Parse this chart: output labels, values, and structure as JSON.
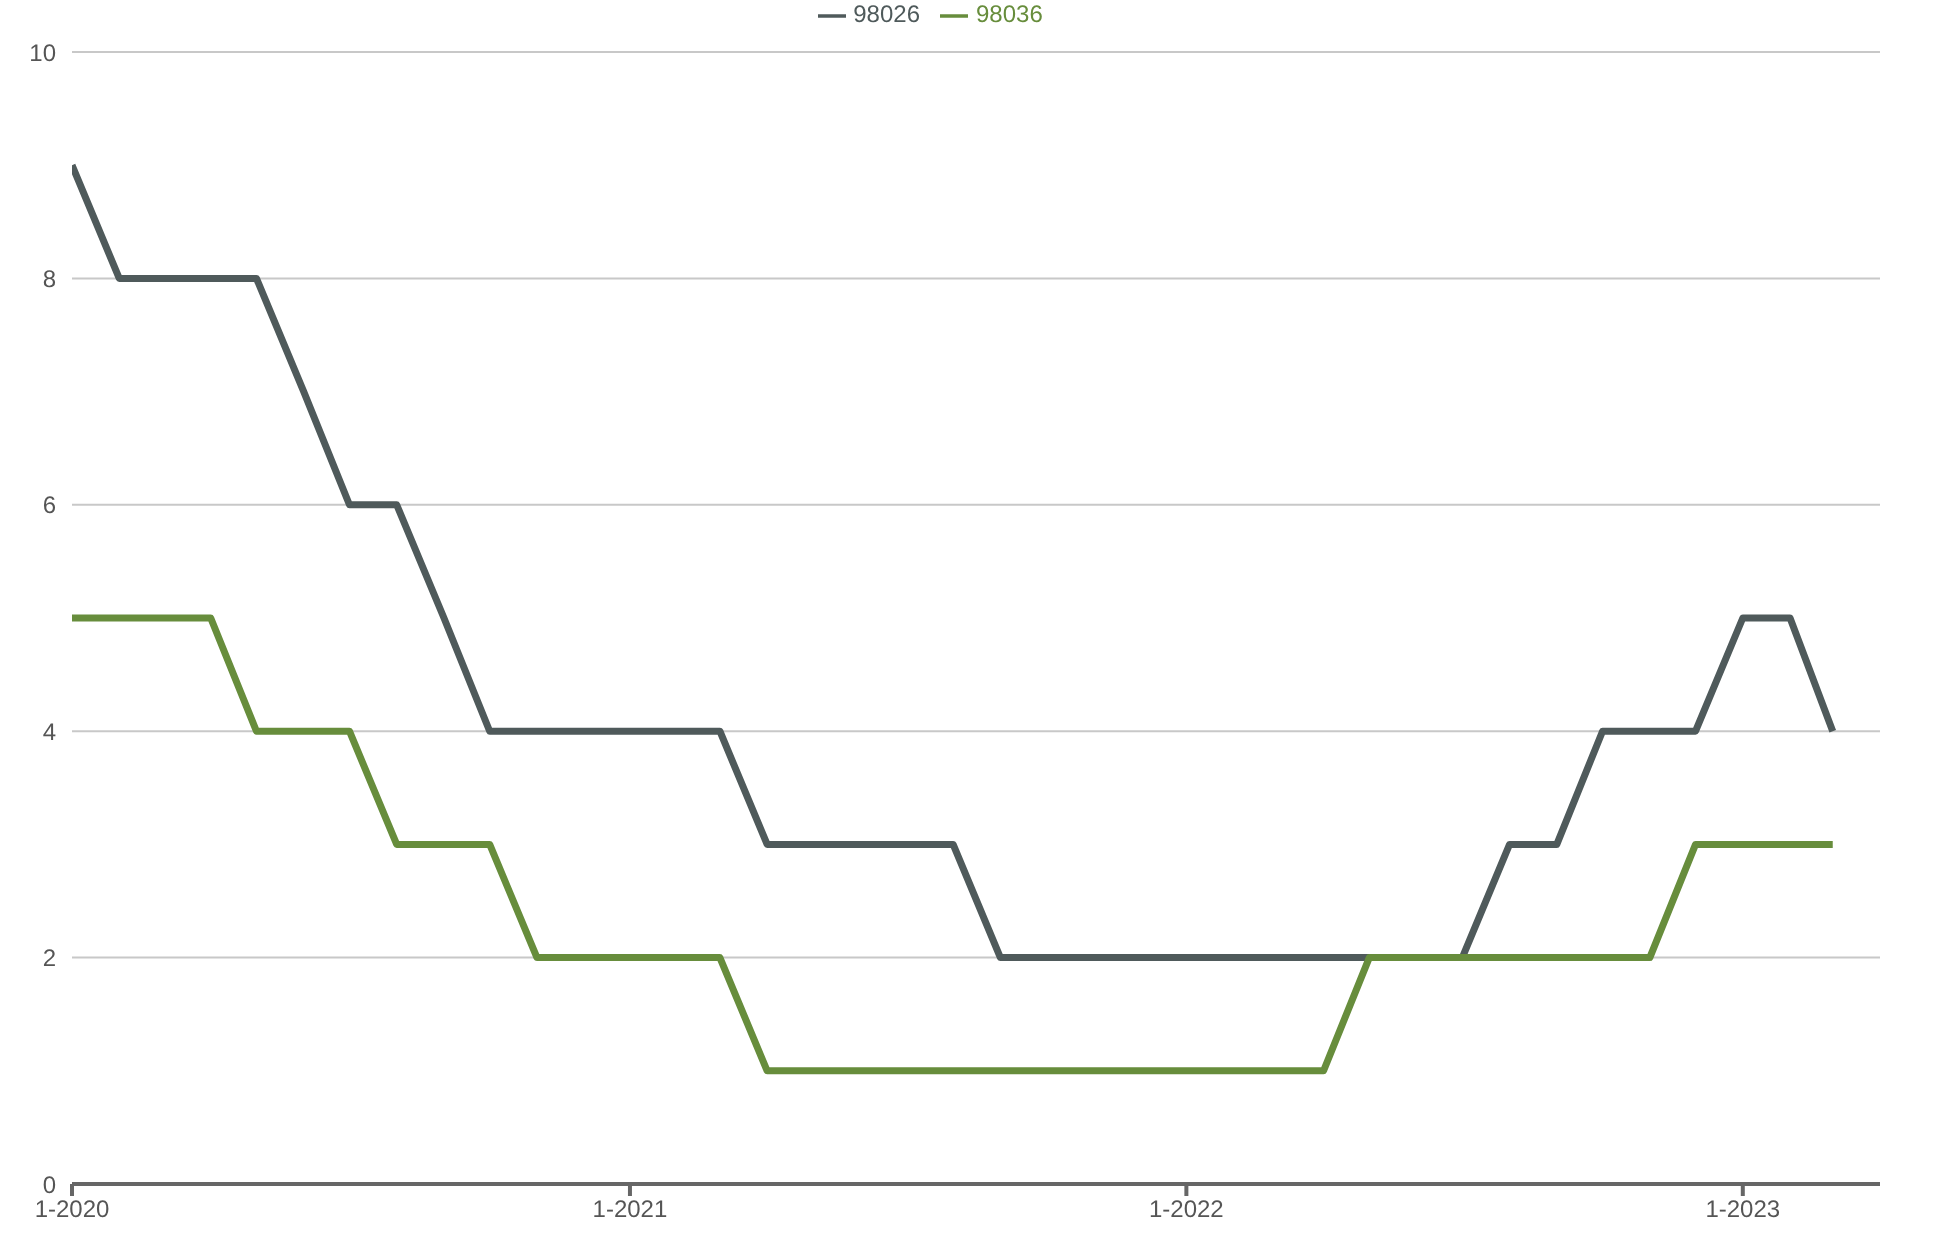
{
  "chart_data": {
    "type": "line",
    "x": [
      "2020-01",
      "2020-02",
      "2020-03",
      "2020-04",
      "2020-05",
      "2020-06",
      "2020-07",
      "2020-08",
      "2020-09",
      "2020-10",
      "2020-11",
      "2020-12",
      "2021-01",
      "2021-02",
      "2021-03",
      "2021-04",
      "2021-05",
      "2021-06",
      "2021-07",
      "2021-08",
      "2021-09",
      "2021-10",
      "2021-11",
      "2021-12",
      "2022-01",
      "2022-02",
      "2022-03",
      "2022-04",
      "2022-05",
      "2022-06",
      "2022-07",
      "2022-08",
      "2022-09",
      "2022-10",
      "2022-11",
      "2022-12",
      "2023-01",
      "2023-02",
      "2023-03"
    ],
    "series": [
      {
        "name": "98026",
        "color": "#4f5a5b",
        "values": [
          9,
          8,
          8,
          8,
          8,
          7,
          6,
          6,
          5,
          4,
          4,
          4,
          4,
          4,
          4,
          3,
          3,
          3,
          3,
          3,
          2,
          2,
          2,
          2,
          2,
          2,
          2,
          2,
          2,
          2,
          2,
          3,
          3,
          4,
          4,
          4,
          5,
          5,
          4
        ]
      },
      {
        "name": "98036",
        "color": "#678d3c",
        "values": [
          5,
          5,
          5,
          5,
          4,
          4,
          4,
          3,
          3,
          3,
          2,
          2,
          2,
          2,
          2,
          1,
          1,
          1,
          1,
          1,
          1,
          1,
          1,
          1,
          1,
          1,
          1,
          1,
          2,
          2,
          2,
          2,
          2,
          2,
          2,
          3,
          3,
          3,
          3
        ]
      }
    ],
    "xlim": [
      "2020-01",
      "2023-04"
    ],
    "xticks": [
      {
        "value": "2020-01",
        "label": "1-2020"
      },
      {
        "value": "2021-01",
        "label": "1-2021"
      },
      {
        "value": "2022-01",
        "label": "1-2022"
      },
      {
        "value": "2023-01",
        "label": "1-2023"
      }
    ],
    "ylim": [
      0,
      10
    ],
    "yticks": [
      0,
      2,
      4,
      6,
      8,
      10
    ],
    "grid": "y",
    "legend": "top",
    "marker": "none",
    "line_style": "solid"
  }
}
